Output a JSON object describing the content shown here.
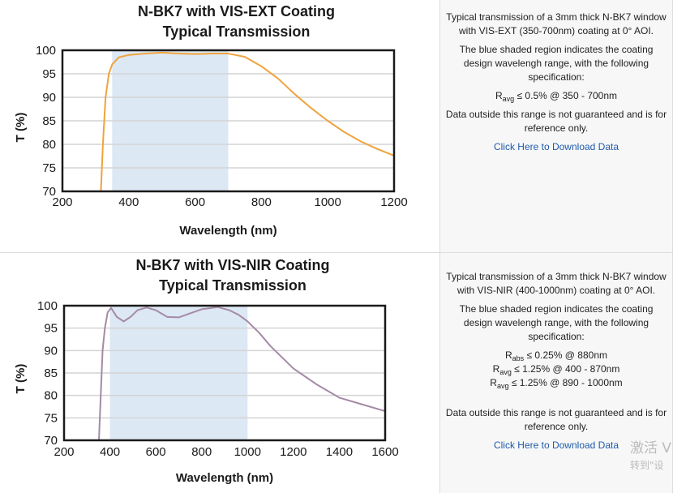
{
  "charts": [
    {
      "description": {
        "para1": "Typical transmission of a 3mm thick N-BK7 window with VIS-EXT (350-700nm) coating at 0° AOI.",
        "para2": "The blue shaded region indicates the coating design wavelengh range, with the following specification:",
        "specs": [
          {
            "sym": "R",
            "sub": "avg",
            "text": "≤ 0.5% @ 350 - 700nm"
          }
        ],
        "para3": "Data outside this range is not guaranteed and is for reference only.",
        "link": "Click Here to Download Data"
      }
    },
    {
      "description": {
        "para1": "Typical transmission of a 3mm thick N-BK7 window with VIS-NIR (400-1000nm) coating at 0° AOI.",
        "para2": "The blue shaded region indicates the coating design wavelengh range, with the following specification:",
        "specs": [
          {
            "sym": "R",
            "sub": "abs",
            "text": "≤ 0.25% @ 880nm"
          },
          {
            "sym": "R",
            "sub": "avg",
            "text": "≤ 1.25% @ 400 - 870nm"
          },
          {
            "sym": "R",
            "sub": "avg",
            "text": "≤ 1.25% @ 890 - 1000nm"
          }
        ],
        "para3": "Data outside this range is not guaranteed and is for reference only.",
        "link": "Click Here to Download Data"
      }
    }
  ],
  "watermark": {
    "line1": "激活 V",
    "line2": "转到\"设"
  },
  "chart_data": [
    {
      "type": "line",
      "title": [
        "N-BK7 with VIS-EXT Coating",
        "Typical Transmission"
      ],
      "xlabel": "Wavelength (nm)",
      "ylabel": "T (%)",
      "xlim": [
        200,
        1200
      ],
      "ylim": [
        70,
        100
      ],
      "xticks": [
        200,
        400,
        600,
        800,
        1000,
        1200
      ],
      "yticks": [
        70,
        75,
        80,
        85,
        90,
        95,
        100
      ],
      "grid": true,
      "shaded_range": [
        350,
        700
      ],
      "shade_color": "#dce8f4",
      "line_color": "#f0a33c",
      "series": [
        {
          "x": [
            316,
            322,
            330,
            340,
            350,
            370,
            400,
            450,
            500,
            550,
            600,
            650,
            700,
            750,
            800,
            850,
            900,
            950,
            1000,
            1050,
            1100,
            1150,
            1200
          ],
          "y": [
            70,
            80,
            90,
            95,
            97,
            98.5,
            99,
            99.3,
            99.5,
            99.3,
            99.2,
            99.3,
            99.3,
            98.6,
            96.6,
            94,
            90.7,
            87.7,
            85,
            82.6,
            80.6,
            79,
            77.6
          ]
        }
      ]
    },
    {
      "type": "line",
      "title": [
        "N-BK7 with VIS-NIR Coating",
        "Typical Transmission"
      ],
      "xlabel": "Wavelength (nm)",
      "ylabel": "T (%)",
      "xlim": [
        200,
        1600
      ],
      "ylim": [
        70,
        100
      ],
      "xticks": [
        200,
        400,
        600,
        800,
        1000,
        1200,
        1400,
        1600
      ],
      "yticks": [
        70,
        75,
        80,
        85,
        90,
        95,
        100
      ],
      "grid": true,
      "shaded_range": [
        400,
        1000
      ],
      "shade_color": "#dce8f4",
      "line_color": "#a48aa6",
      "series": [
        {
          "x": [
            352,
            360,
            368,
            378,
            390,
            405,
            430,
            460,
            490,
            520,
            560,
            600,
            650,
            700,
            750,
            800,
            870,
            920,
            960,
            1000,
            1050,
            1100,
            1200,
            1300,
            1350,
            1400,
            1500,
            1600
          ],
          "y": [
            70,
            80,
            90,
            95,
            98.5,
            99.5,
            97.5,
            96.5,
            97.5,
            99,
            99.6,
            99,
            97.5,
            97.4,
            98.3,
            99.2,
            99.7,
            99,
            98,
            96.5,
            94,
            91,
            86,
            82.5,
            81,
            79.5,
            78,
            76.5
          ]
        }
      ]
    }
  ]
}
